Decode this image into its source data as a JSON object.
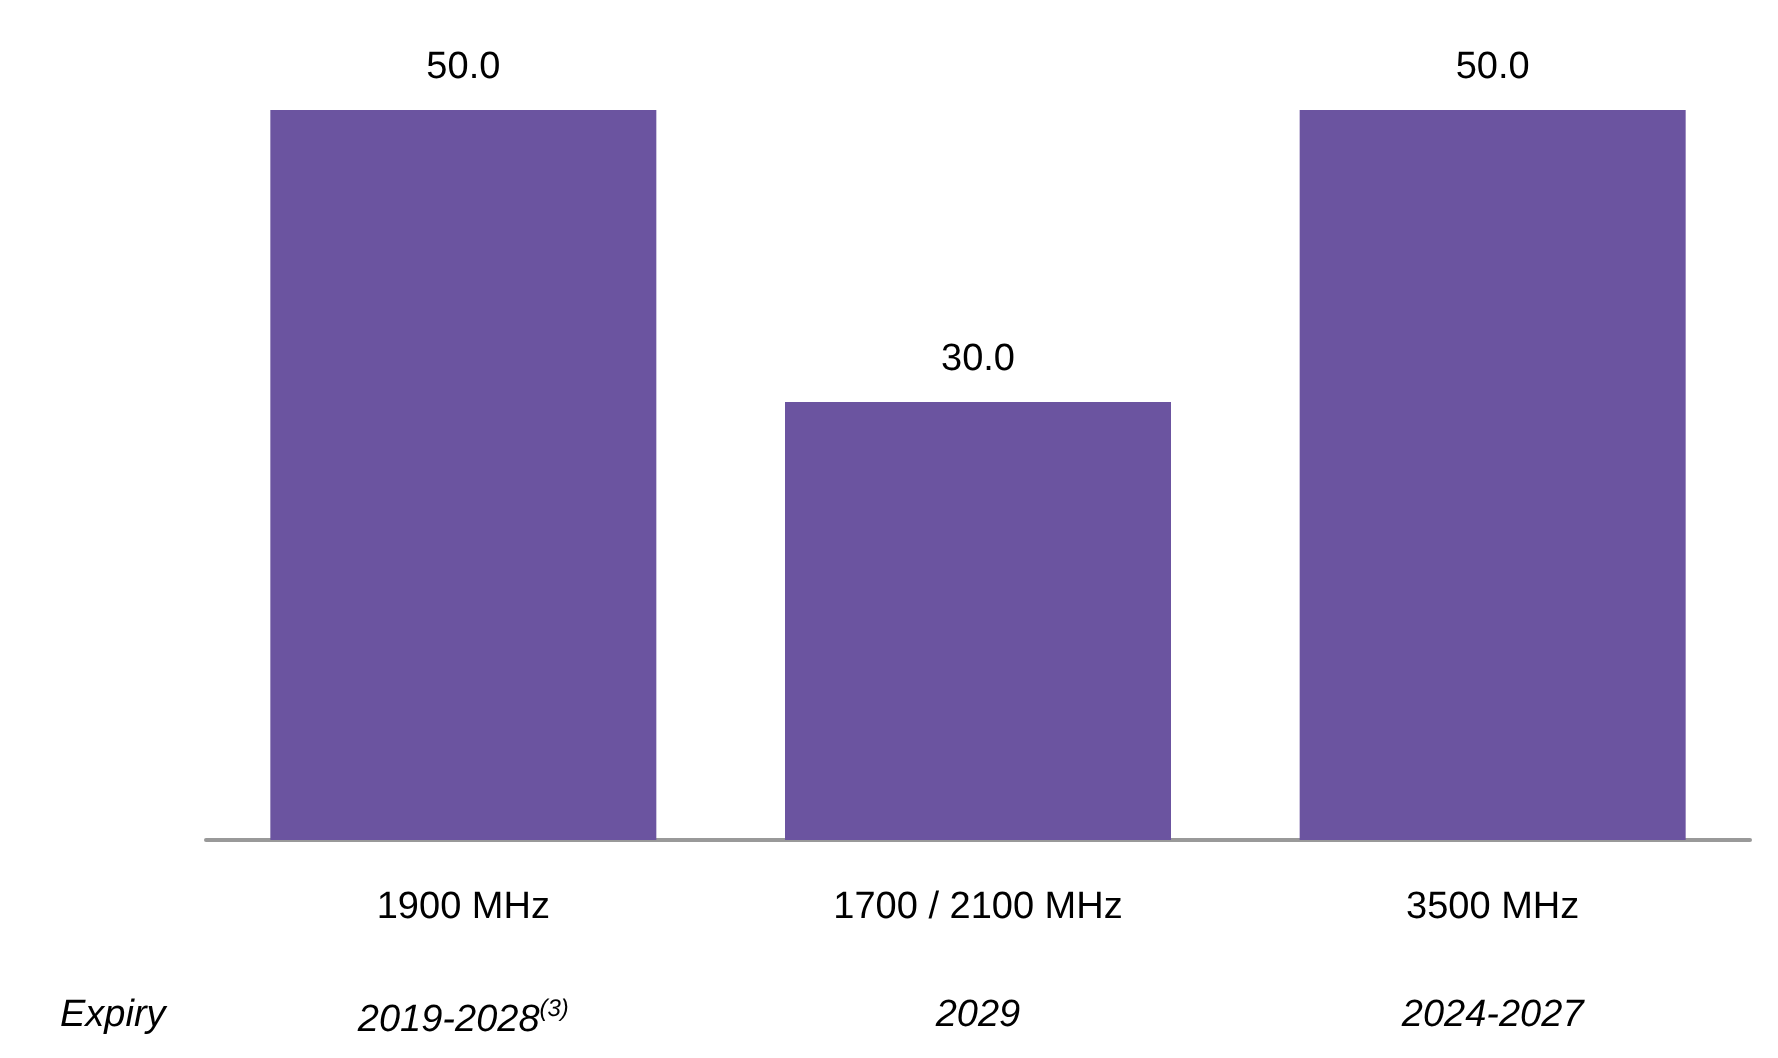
{
  "chart_data": {
    "type": "bar",
    "categories": [
      "1900 MHz",
      "1700 / 2100 MHz",
      "3500 MHz"
    ],
    "values": [
      50.0,
      30.0,
      50.0
    ],
    "color": "#6b54a0",
    "value_labels": [
      "50.0",
      "30.0",
      "50.0"
    ],
    "annotations": [
      "Expiry",
      "2019-2028$^{(3)}$",
      "2029",
      "2024-2027"
    ]
  }
}
